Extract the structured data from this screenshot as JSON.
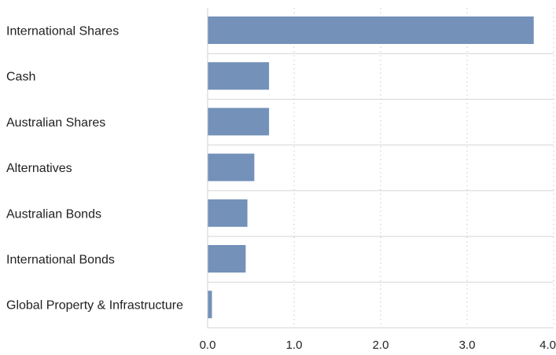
{
  "chart_data": {
    "type": "bar",
    "orientation": "horizontal",
    "categories": [
      "International Shares",
      "Cash",
      "Australian Shares",
      "Alternatives",
      "Australian Bonds",
      "International Bonds",
      "Global Property & Infrastructure"
    ],
    "values": [
      3.77,
      0.71,
      0.71,
      0.54,
      0.46,
      0.44,
      0.05
    ],
    "xlim": [
      0,
      4.0
    ],
    "xticks": [
      0,
      1,
      2,
      3,
      4
    ],
    "xtick_labels": [
      "0.0",
      "1.0",
      "2.0",
      "3.0",
      "4.0"
    ],
    "title": "",
    "xlabel": "",
    "ylabel": "",
    "grid": "vertical dotted",
    "legend": "none",
    "bar_color": "#7391b9"
  }
}
